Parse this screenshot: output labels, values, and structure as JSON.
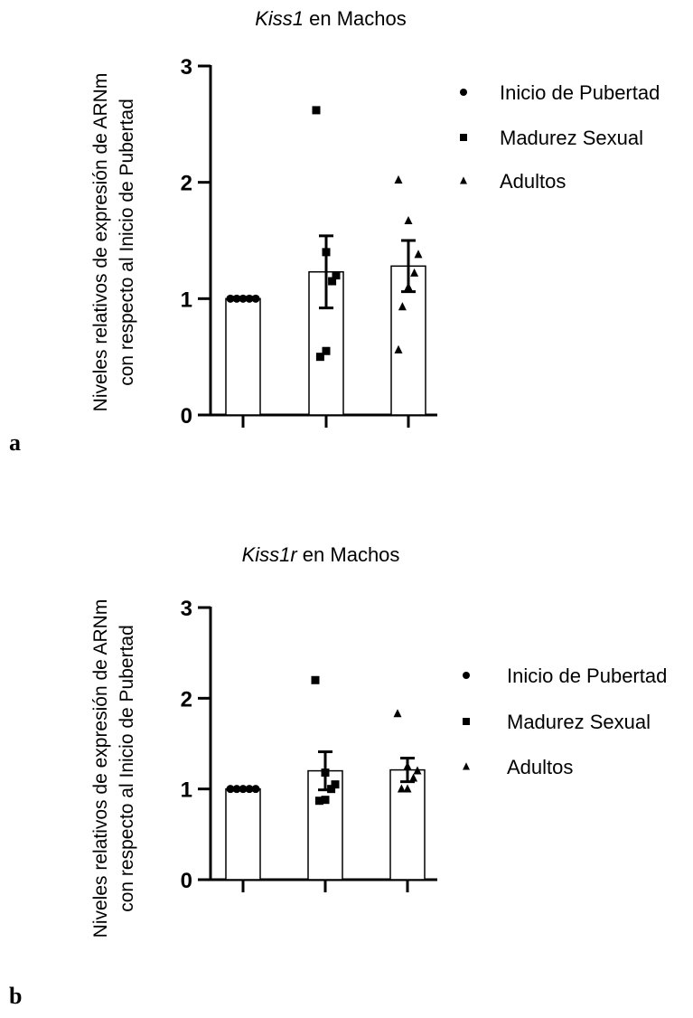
{
  "chart_data": [
    {
      "type": "bar",
      "panel": "a",
      "title_italic": "Kiss1",
      "title_rest": " en Machos",
      "ylabel_line1": "Niveles relativos de expresión de ARNm",
      "ylabel_line2": "con respecto al Inicio de Pubertad",
      "xlabel": "",
      "ylim": [
        0,
        3
      ],
      "yticks": [
        "0",
        "1",
        "2",
        "3"
      ],
      "categories": [
        "",
        "",
        ""
      ],
      "legend_position": "right",
      "series": [
        {
          "name": "Inicio de Pubertad",
          "marker": "circle",
          "mean": 1.0,
          "sem": 0.0,
          "points": [
            1.0,
            1.0,
            1.0,
            1.0,
            1.0
          ]
        },
        {
          "name": "Madurez Sexual",
          "marker": "square",
          "mean": 1.23,
          "sem": 0.31,
          "points": [
            2.62,
            1.4,
            1.2,
            1.15,
            0.55,
            0.5
          ]
        },
        {
          "name": "Adultos",
          "marker": "triangle",
          "mean": 1.28,
          "sem": 0.22,
          "points": [
            2.02,
            1.67,
            1.38,
            1.22,
            1.1,
            0.93,
            0.56
          ]
        }
      ]
    },
    {
      "type": "bar",
      "panel": "b",
      "title_italic": "Kiss1r",
      "title_rest": " en Machos",
      "ylabel_line1": "Niveles relativos de expresión de ARNm",
      "ylabel_line2": "con respecto al Inicio de Pubertad",
      "xlabel": "",
      "ylim": [
        0,
        3
      ],
      "yticks": [
        "0",
        "1",
        "2",
        "3"
      ],
      "categories": [
        "",
        "",
        ""
      ],
      "legend_position": "right",
      "series": [
        {
          "name": "Inicio de Pubertad",
          "marker": "circle",
          "mean": 1.0,
          "sem": 0.0,
          "points": [
            1.0,
            1.0,
            1.0,
            1.0,
            1.0
          ]
        },
        {
          "name": "Madurez Sexual",
          "marker": "square",
          "mean": 1.2,
          "sem": 0.21,
          "points": [
            2.2,
            1.18,
            1.05,
            1.0,
            0.88,
            0.87
          ]
        },
        {
          "name": "Adultos",
          "marker": "triangle",
          "mean": 1.21,
          "sem": 0.13,
          "points": [
            1.83,
            1.25,
            1.2,
            1.12,
            1.0,
            1.0
          ]
        }
      ]
    }
  ]
}
